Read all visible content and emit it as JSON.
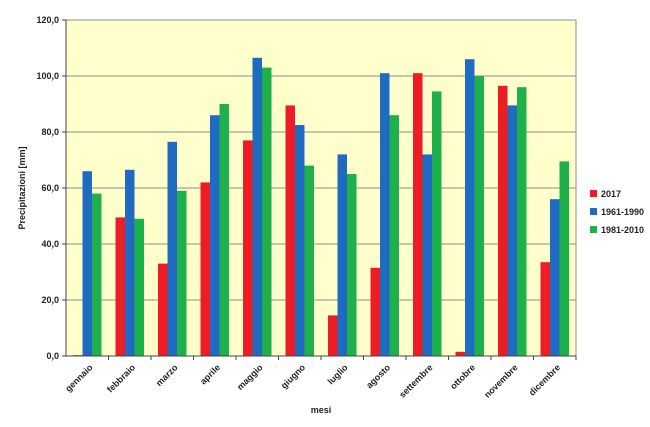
{
  "chart_data": {
    "type": "bar",
    "title": "",
    "xlabel": "mesi",
    "ylabel": "Precipitazioni [mm]",
    "ylim": [
      0,
      120
    ],
    "y_ticks": [
      "0,0",
      "20,0",
      "40,0",
      "60,0",
      "80,0",
      "100,0",
      "120,0"
    ],
    "categories": [
      "gennaio",
      "febbraio",
      "marzo",
      "aprile",
      "maggio",
      "giugno",
      "luglio",
      "agosto",
      "settembre",
      "ottobre",
      "novembre",
      "dicembre"
    ],
    "series": [
      {
        "name": "2017",
        "color": "#ee1c25",
        "values": [
          0.3,
          49.5,
          33.0,
          62.0,
          77.0,
          89.5,
          14.5,
          31.5,
          101.0,
          1.5,
          96.5,
          33.5
        ]
      },
      {
        "name": "1961-1990",
        "color": "#1f6bc1",
        "values": [
          66.0,
          66.5,
          76.5,
          86.0,
          106.5,
          82.5,
          72.0,
          101.0,
          72.0,
          106.0,
          89.5,
          56.0
        ]
      },
      {
        "name": "1981-2010",
        "color": "#1db04b",
        "values": [
          58.0,
          49.0,
          59.0,
          90.0,
          103.0,
          68.0,
          65.0,
          86.0,
          94.5,
          100.0,
          96.0,
          69.5
        ]
      }
    ],
    "grid": true,
    "legend": "right",
    "plot_background": "#ffffcc"
  }
}
